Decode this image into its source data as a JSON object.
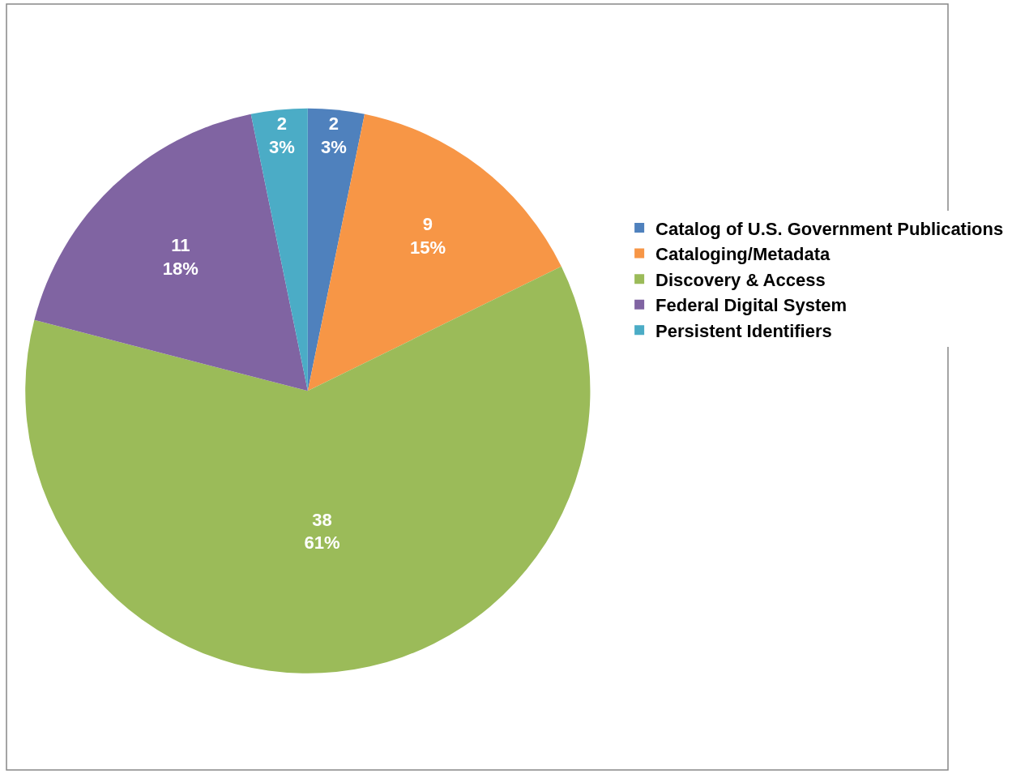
{
  "chart_data": {
    "type": "pie",
    "categories": [
      "Catalog of U.S. Government Publications",
      "Cataloging/Metadata",
      "Discovery & Access",
      "Federal Digital System",
      "Persistent Identifiers"
    ],
    "values": [
      2,
      9,
      38,
      11,
      2
    ],
    "colors": [
      "#4f81bd",
      "#f79646",
      "#9bbb59",
      "#8064a2",
      "#4bacc6"
    ],
    "value_labels": [
      "2\n3%",
      "9\n15%",
      "38\n61%",
      "11\n18%",
      "2\n3%"
    ],
    "legend": "right"
  }
}
